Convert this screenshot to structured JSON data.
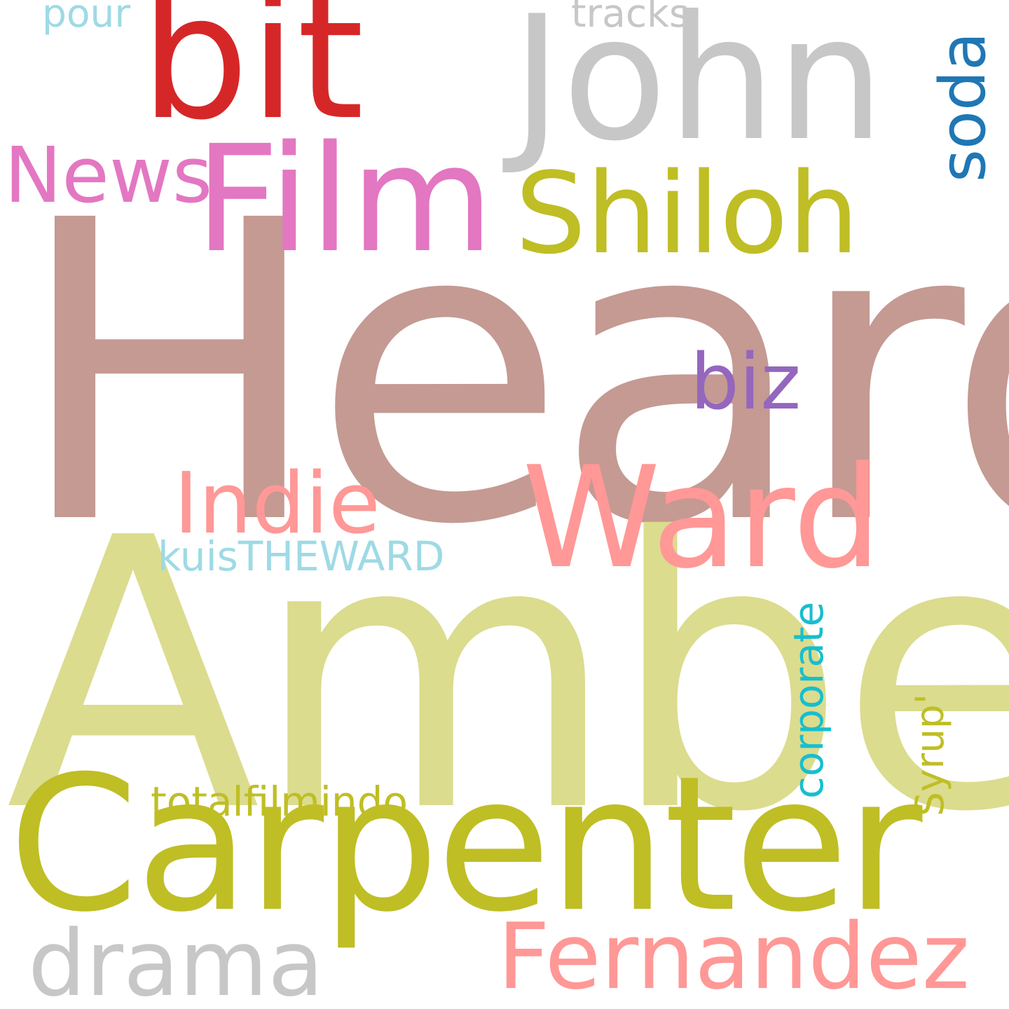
{
  "words": {
    "heard": {
      "text": "Heard",
      "color": "#c49a93"
    },
    "amber": {
      "text": "Amber",
      "color": "#dbdc8e"
    },
    "carpenter": {
      "text": "Carpenter",
      "color": "#bfbe25"
    },
    "john": {
      "text": "John",
      "color": "#c7c7c7"
    },
    "bit": {
      "text": "bit",
      "color": "#d62728"
    },
    "film": {
      "text": "Film",
      "color": "#e377c2"
    },
    "shiloh": {
      "text": "Shiloh",
      "color": "#bfbe25"
    },
    "ward": {
      "text": "Ward",
      "color": "#ff9896"
    },
    "indie": {
      "text": "Indie",
      "color": "#ff9896"
    },
    "news": {
      "text": "News",
      "color": "#e377c2"
    },
    "biz": {
      "text": "biz",
      "color": "#9467bd"
    },
    "fernandez": {
      "text": "Fernandez",
      "color": "#ff9896"
    },
    "drama": {
      "text": "drama",
      "color": "#c7c7c7"
    },
    "totalfilmindo": {
      "text": "totalfilmindo",
      "color": "#bfbe25"
    },
    "kuistheward": {
      "text": "kuisTHEWARD",
      "color": "#9edae5"
    },
    "tracks": {
      "text": "tracks",
      "color": "#c7c7c7"
    },
    "pour": {
      "text": "pour",
      "color": "#9edae5"
    },
    "soda": {
      "text": "soda",
      "color": "#1f77b4"
    },
    "corporate": {
      "text": "corporate",
      "color": "#17becf"
    },
    "syrup": {
      "text": "Syrup'",
      "color": "#bfbe25"
    }
  }
}
